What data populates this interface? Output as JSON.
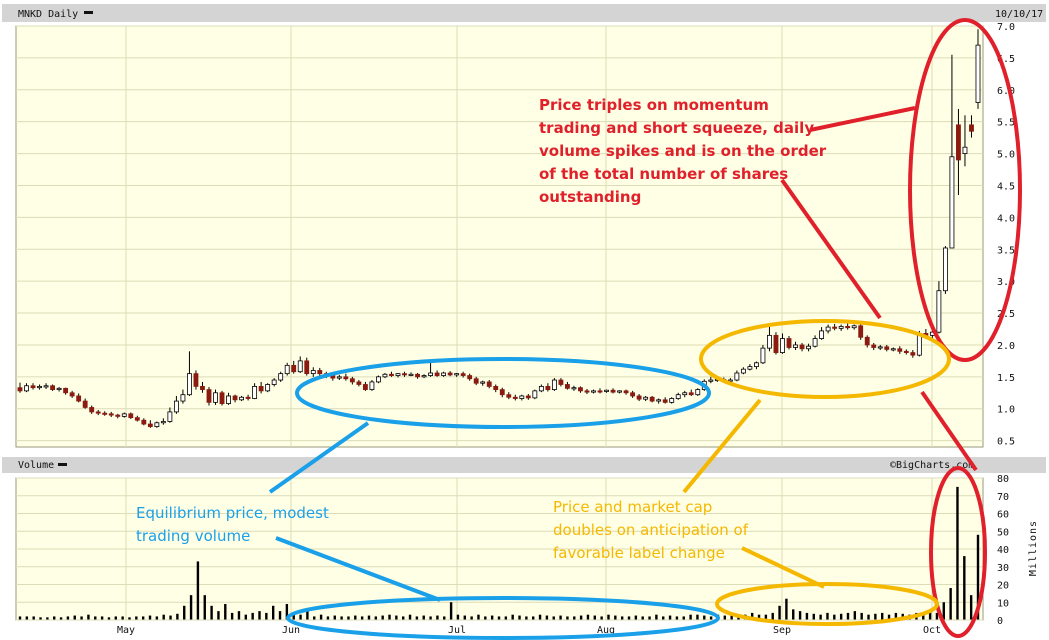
{
  "header": {
    "symbol_label": "MNKD Daily",
    "date": "10/10/17"
  },
  "volume_header": {
    "label": "Volume",
    "watermark": "©BigCharts.com",
    "unit": "Millions"
  },
  "colors": {
    "panel_bg": "#ffffe6",
    "header_bg": "#d4d4d4",
    "grid": "#dcdcb8",
    "up_fill": "#ffffff",
    "down_fill": "#8b1a10",
    "candle_stroke": "#000000",
    "red": "#e0202a",
    "blue": "#1aa0e8",
    "yellow": "#f5b800"
  },
  "annotations": [
    {
      "id": "momentum",
      "color": "red",
      "lines": [
        "Price triples on momentum",
        "trading and short squeeze, daily",
        "volume spikes and is on the order",
        "of the total number of shares",
        "outstanding"
      ]
    },
    {
      "id": "equilibrium",
      "color": "blue",
      "lines": [
        "Equilibrium price, modest",
        "trading volume"
      ]
    },
    {
      "id": "label-change",
      "color": "yellow",
      "lines": [
        "Price and market cap",
        "doubles on anticipation of",
        "favorable label change"
      ]
    }
  ],
  "chart_data": [
    {
      "type": "candlestick",
      "title": "MNKD Daily",
      "x_tick_labels": [
        "May",
        "Jun",
        "Jul",
        "Aug",
        "Sep",
        "Oct"
      ],
      "y_ticks": [
        0.5,
        1.0,
        1.5,
        2.0,
        2.5,
        3.0,
        3.5,
        4.0,
        4.5,
        5.0,
        5.5,
        6.0,
        6.5,
        7.0
      ],
      "ylim": [
        0.4,
        7.0
      ],
      "grid": true,
      "bars": [
        {
          "o": 1.33,
          "h": 1.41,
          "c": 1.28,
          "l": 1.25
        },
        {
          "o": 1.28,
          "h": 1.4,
          "c": 1.36,
          "l": 1.26
        },
        {
          "o": 1.36,
          "h": 1.4,
          "c": 1.33,
          "l": 1.3
        },
        {
          "o": 1.33,
          "h": 1.38,
          "c": 1.35,
          "l": 1.3
        },
        {
          "o": 1.35,
          "h": 1.4,
          "c": 1.36,
          "l": 1.31
        },
        {
          "o": 1.36,
          "h": 1.38,
          "c": 1.3,
          "l": 1.28
        },
        {
          "o": 1.3,
          "h": 1.34,
          "c": 1.32,
          "l": 1.27
        },
        {
          "o": 1.32,
          "h": 1.33,
          "c": 1.25,
          "l": 1.22
        },
        {
          "o": 1.25,
          "h": 1.28,
          "c": 1.2,
          "l": 1.17
        },
        {
          "o": 1.2,
          "h": 1.24,
          "c": 1.12,
          "l": 1.1
        },
        {
          "o": 1.12,
          "h": 1.16,
          "c": 1.02,
          "l": 1.0
        },
        {
          "o": 1.02,
          "h": 1.05,
          "c": 0.95,
          "l": 0.92
        },
        {
          "o": 0.95,
          "h": 0.98,
          "c": 0.93,
          "l": 0.9
        },
        {
          "o": 0.93,
          "h": 0.96,
          "c": 0.92,
          "l": 0.89
        },
        {
          "o": 0.92,
          "h": 0.95,
          "c": 0.9,
          "l": 0.87
        },
        {
          "o": 0.9,
          "h": 0.92,
          "c": 0.88,
          "l": 0.85
        },
        {
          "o": 0.88,
          "h": 0.94,
          "c": 0.92,
          "l": 0.86
        },
        {
          "o": 0.92,
          "h": 0.94,
          "c": 0.86,
          "l": 0.84
        },
        {
          "o": 0.86,
          "h": 0.89,
          "c": 0.82,
          "l": 0.8
        },
        {
          "o": 0.82,
          "h": 0.85,
          "c": 0.76,
          "l": 0.74
        },
        {
          "o": 0.76,
          "h": 0.82,
          "c": 0.72,
          "l": 0.7
        },
        {
          "o": 0.72,
          "h": 0.8,
          "c": 0.78,
          "l": 0.7
        },
        {
          "o": 0.78,
          "h": 0.85,
          "c": 0.8,
          "l": 0.75
        },
        {
          "o": 0.8,
          "h": 1.02,
          "c": 0.95,
          "l": 0.78
        },
        {
          "o": 0.95,
          "h": 1.2,
          "c": 1.12,
          "l": 0.92
        },
        {
          "o": 1.12,
          "h": 1.3,
          "c": 1.22,
          "l": 1.08
        },
        {
          "o": 1.22,
          "h": 1.9,
          "c": 1.55,
          "l": 1.2
        },
        {
          "o": 1.55,
          "h": 1.6,
          "c": 1.35,
          "l": 1.3
        },
        {
          "o": 1.35,
          "h": 1.42,
          "c": 1.3,
          "l": 1.25
        },
        {
          "o": 1.3,
          "h": 1.34,
          "c": 1.1,
          "l": 1.05
        },
        {
          "o": 1.1,
          "h": 1.3,
          "c": 1.25,
          "l": 1.06
        },
        {
          "o": 1.25,
          "h": 1.28,
          "c": 1.08,
          "l": 1.05
        },
        {
          "o": 1.08,
          "h": 1.25,
          "c": 1.2,
          "l": 1.06
        },
        {
          "o": 1.2,
          "h": 1.22,
          "c": 1.14,
          "l": 1.1
        },
        {
          "o": 1.14,
          "h": 1.2,
          "c": 1.18,
          "l": 1.12
        },
        {
          "o": 1.18,
          "h": 1.22,
          "c": 1.16,
          "l": 1.13
        },
        {
          "o": 1.16,
          "h": 1.4,
          "c": 1.35,
          "l": 1.15
        },
        {
          "o": 1.35,
          "h": 1.42,
          "c": 1.28,
          "l": 1.24
        },
        {
          "o": 1.28,
          "h": 1.4,
          "c": 1.38,
          "l": 1.26
        },
        {
          "o": 1.38,
          "h": 1.48,
          "c": 1.45,
          "l": 1.35
        },
        {
          "o": 1.45,
          "h": 1.58,
          "c": 1.55,
          "l": 1.42
        },
        {
          "o": 1.55,
          "h": 1.72,
          "c": 1.68,
          "l": 1.52
        },
        {
          "o": 1.68,
          "h": 1.75,
          "c": 1.58,
          "l": 1.55
        },
        {
          "o": 1.58,
          "h": 1.82,
          "c": 1.75,
          "l": 1.56
        },
        {
          "o": 1.75,
          "h": 1.8,
          "c": 1.55,
          "l": 1.52
        },
        {
          "o": 1.55,
          "h": 1.65,
          "c": 1.6,
          "l": 1.5
        },
        {
          "o": 1.6,
          "h": 1.64,
          "c": 1.55,
          "l": 1.52
        },
        {
          "o": 1.55,
          "h": 1.58,
          "c": 1.52,
          "l": 1.48
        },
        {
          "o": 1.52,
          "h": 1.56,
          "c": 1.48,
          "l": 1.44
        },
        {
          "o": 1.48,
          "h": 1.53,
          "c": 1.5,
          "l": 1.45
        },
        {
          "o": 1.5,
          "h": 1.55,
          "c": 1.47,
          "l": 1.44
        },
        {
          "o": 1.47,
          "h": 1.5,
          "c": 1.42,
          "l": 1.38
        },
        {
          "o": 1.42,
          "h": 1.45,
          "c": 1.38,
          "l": 1.35
        },
        {
          "o": 1.38,
          "h": 1.42,
          "c": 1.3,
          "l": 1.28
        },
        {
          "o": 1.3,
          "h": 1.45,
          "c": 1.42,
          "l": 1.28
        },
        {
          "o": 1.42,
          "h": 1.52,
          "c": 1.5,
          "l": 1.4
        },
        {
          "o": 1.5,
          "h": 1.56,
          "c": 1.54,
          "l": 1.48
        },
        {
          "o": 1.54,
          "h": 1.58,
          "c": 1.52,
          "l": 1.5
        },
        {
          "o": 1.52,
          "h": 1.56,
          "c": 1.55,
          "l": 1.49
        },
        {
          "o": 1.55,
          "h": 1.58,
          "c": 1.53,
          "l": 1.5
        },
        {
          "o": 1.53,
          "h": 1.57,
          "c": 1.54,
          "l": 1.51
        },
        {
          "o": 1.54,
          "h": 1.56,
          "c": 1.5,
          "l": 1.47
        },
        {
          "o": 1.5,
          "h": 1.54,
          "c": 1.52,
          "l": 1.48
        },
        {
          "o": 1.52,
          "h": 1.72,
          "c": 1.56,
          "l": 1.5
        },
        {
          "o": 1.56,
          "h": 1.6,
          "c": 1.52,
          "l": 1.5
        },
        {
          "o": 1.52,
          "h": 1.58,
          "c": 1.56,
          "l": 1.5
        },
        {
          "o": 1.56,
          "h": 1.59,
          "c": 1.53,
          "l": 1.51
        },
        {
          "o": 1.53,
          "h": 1.56,
          "c": 1.55,
          "l": 1.5
        },
        {
          "o": 1.55,
          "h": 1.58,
          "c": 1.52,
          "l": 1.49
        },
        {
          "o": 1.52,
          "h": 1.55,
          "c": 1.47,
          "l": 1.44
        },
        {
          "o": 1.47,
          "h": 1.5,
          "c": 1.4,
          "l": 1.37
        },
        {
          "o": 1.4,
          "h": 1.44,
          "c": 1.42,
          "l": 1.36
        },
        {
          "o": 1.42,
          "h": 1.45,
          "c": 1.35,
          "l": 1.32
        },
        {
          "o": 1.35,
          "h": 1.38,
          "c": 1.3,
          "l": 1.26
        },
        {
          "o": 1.3,
          "h": 1.33,
          "c": 1.22,
          "l": 1.18
        },
        {
          "o": 1.22,
          "h": 1.26,
          "c": 1.18,
          "l": 1.15
        },
        {
          "o": 1.18,
          "h": 1.22,
          "c": 1.16,
          "l": 1.13
        },
        {
          "o": 1.16,
          "h": 1.22,
          "c": 1.2,
          "l": 1.13
        },
        {
          "o": 1.2,
          "h": 1.23,
          "c": 1.17,
          "l": 1.14
        },
        {
          "o": 1.17,
          "h": 1.3,
          "c": 1.28,
          "l": 1.15
        },
        {
          "o": 1.28,
          "h": 1.38,
          "c": 1.35,
          "l": 1.26
        },
        {
          "o": 1.35,
          "h": 1.4,
          "c": 1.3,
          "l": 1.27
        },
        {
          "o": 1.3,
          "h": 1.48,
          "c": 1.45,
          "l": 1.28
        },
        {
          "o": 1.45,
          "h": 1.48,
          "c": 1.38,
          "l": 1.35
        },
        {
          "o": 1.38,
          "h": 1.42,
          "c": 1.32,
          "l": 1.3
        },
        {
          "o": 1.32,
          "h": 1.36,
          "c": 1.33,
          "l": 1.28
        },
        {
          "o": 1.33,
          "h": 1.35,
          "c": 1.28,
          "l": 1.25
        },
        {
          "o": 1.28,
          "h": 1.31,
          "c": 1.26,
          "l": 1.23
        },
        {
          "o": 1.26,
          "h": 1.3,
          "c": 1.28,
          "l": 1.24
        },
        {
          "o": 1.28,
          "h": 1.32,
          "c": 1.27,
          "l": 1.24
        },
        {
          "o": 1.27,
          "h": 1.3,
          "c": 1.29,
          "l": 1.25
        },
        {
          "o": 1.29,
          "h": 1.32,
          "c": 1.26,
          "l": 1.24
        },
        {
          "o": 1.26,
          "h": 1.29,
          "c": 1.28,
          "l": 1.24
        },
        {
          "o": 1.28,
          "h": 1.3,
          "c": 1.25,
          "l": 1.22
        },
        {
          "o": 1.25,
          "h": 1.28,
          "c": 1.2,
          "l": 1.17
        },
        {
          "o": 1.2,
          "h": 1.23,
          "c": 1.15,
          "l": 1.12
        },
        {
          "o": 1.15,
          "h": 1.2,
          "c": 1.18,
          "l": 1.12
        },
        {
          "o": 1.18,
          "h": 1.2,
          "c": 1.12,
          "l": 1.1
        },
        {
          "o": 1.12,
          "h": 1.16,
          "c": 1.14,
          "l": 1.08
        },
        {
          "o": 1.14,
          "h": 1.18,
          "c": 1.1,
          "l": 1.08
        },
        {
          "o": 1.1,
          "h": 1.18,
          "c": 1.16,
          "l": 1.08
        },
        {
          "o": 1.16,
          "h": 1.25,
          "c": 1.22,
          "l": 1.14
        },
        {
          "o": 1.22,
          "h": 1.28,
          "c": 1.25,
          "l": 1.18
        },
        {
          "o": 1.25,
          "h": 1.3,
          "c": 1.22,
          "l": 1.2
        },
        {
          "o": 1.22,
          "h": 1.32,
          "c": 1.3,
          "l": 1.2
        },
        {
          "o": 1.3,
          "h": 1.46,
          "c": 1.43,
          "l": 1.28
        },
        {
          "o": 1.43,
          "h": 1.5,
          "c": 1.45,
          "l": 1.4
        },
        {
          "o": 1.45,
          "h": 1.5,
          "c": 1.46,
          "l": 1.42
        },
        {
          "o": 1.46,
          "h": 1.49,
          "c": 1.44,
          "l": 1.42
        },
        {
          "o": 1.44,
          "h": 1.48,
          "c": 1.45,
          "l": 1.42
        },
        {
          "o": 1.45,
          "h": 1.6,
          "c": 1.56,
          "l": 1.43
        },
        {
          "o": 1.56,
          "h": 1.65,
          "c": 1.62,
          "l": 1.54
        },
        {
          "o": 1.62,
          "h": 1.7,
          "c": 1.66,
          "l": 1.6
        },
        {
          "o": 1.66,
          "h": 1.74,
          "c": 1.72,
          "l": 1.62
        },
        {
          "o": 1.72,
          "h": 2.0,
          "c": 1.95,
          "l": 1.7
        },
        {
          "o": 1.95,
          "h": 2.32,
          "c": 2.15,
          "l": 1.9
        },
        {
          "o": 2.15,
          "h": 2.2,
          "c": 1.88,
          "l": 1.85
        },
        {
          "o": 1.88,
          "h": 2.18,
          "c": 2.1,
          "l": 1.86
        },
        {
          "o": 2.1,
          "h": 2.14,
          "c": 1.96,
          "l": 1.93
        },
        {
          "o": 1.96,
          "h": 2.05,
          "c": 2.0,
          "l": 1.92
        },
        {
          "o": 2.0,
          "h": 2.03,
          "c": 1.94,
          "l": 1.9
        },
        {
          "o": 1.94,
          "h": 2.02,
          "c": 1.98,
          "l": 1.9
        },
        {
          "o": 1.98,
          "h": 2.15,
          "c": 2.1,
          "l": 1.96
        },
        {
          "o": 2.1,
          "h": 2.28,
          "c": 2.22,
          "l": 2.08
        },
        {
          "o": 2.22,
          "h": 2.32,
          "c": 2.28,
          "l": 2.18
        },
        {
          "o": 2.28,
          "h": 2.33,
          "c": 2.26,
          "l": 2.23
        },
        {
          "o": 2.26,
          "h": 2.32,
          "c": 2.29,
          "l": 2.22
        },
        {
          "o": 2.29,
          "h": 2.34,
          "c": 2.27,
          "l": 2.24
        },
        {
          "o": 2.27,
          "h": 2.32,
          "c": 2.3,
          "l": 2.24
        },
        {
          "o": 2.3,
          "h": 2.33,
          "c": 2.12,
          "l": 2.08
        },
        {
          "o": 2.12,
          "h": 2.15,
          "c": 2.0,
          "l": 1.96
        },
        {
          "o": 2.0,
          "h": 2.03,
          "c": 1.96,
          "l": 1.92
        },
        {
          "o": 1.96,
          "h": 2.0,
          "c": 1.97,
          "l": 1.92
        },
        {
          "o": 1.97,
          "h": 2.0,
          "c": 1.93,
          "l": 1.9
        },
        {
          "o": 1.93,
          "h": 1.96,
          "c": 1.94,
          "l": 1.9
        },
        {
          "o": 1.94,
          "h": 1.98,
          "c": 1.9,
          "l": 1.86
        },
        {
          "o": 1.9,
          "h": 1.93,
          "c": 1.88,
          "l": 1.85
        },
        {
          "o": 1.88,
          "h": 1.92,
          "c": 1.84,
          "l": 1.8
        },
        {
          "o": 1.84,
          "h": 2.22,
          "c": 2.18,
          "l": 1.82
        },
        {
          "o": 2.18,
          "h": 2.25,
          "c": 2.15,
          "l": 2.1
        },
        {
          "o": 2.15,
          "h": 2.3,
          "c": 2.2,
          "l": 2.1
        },
        {
          "o": 2.2,
          "h": 3.0,
          "c": 2.85,
          "l": 2.18
        },
        {
          "o": 2.85,
          "h": 3.55,
          "c": 3.52,
          "l": 2.8
        },
        {
          "o": 3.52,
          "h": 6.55,
          "c": 4.95,
          "l": 3.55
        },
        {
          "o": 5.45,
          "h": 5.7,
          "c": 4.9,
          "l": 4.35
        },
        {
          "o": 5.0,
          "h": 5.6,
          "c": 5.1,
          "l": 4.8
        },
        {
          "o": 5.45,
          "h": 5.6,
          "c": 5.35,
          "l": 5.25
        },
        {
          "o": 5.8,
          "h": 6.95,
          "c": 6.7,
          "l": 5.7
        }
      ]
    },
    {
      "type": "bar",
      "title": "Volume",
      "ylabel": "Millions",
      "x_tick_labels": [
        "May",
        "Jun",
        "Jul",
        "Aug",
        "Sep",
        "Oct"
      ],
      "y_ticks": [
        0,
        10,
        20,
        30,
        40,
        50,
        60,
        70,
        80
      ],
      "ylim": [
        0,
        80
      ],
      "values": [
        2,
        2,
        2,
        1.5,
        1.5,
        2,
        1.5,
        2,
        2.5,
        2,
        3,
        2,
        2,
        1.5,
        2,
        2,
        1.5,
        2,
        2,
        2.5,
        2,
        3,
        2.5,
        3.5,
        8,
        14,
        33,
        14,
        8,
        5,
        9,
        4,
        5,
        3,
        4,
        5,
        4,
        8,
        5,
        9,
        4,
        3,
        6,
        2,
        3,
        2,
        2.5,
        2,
        2,
        2.5,
        2,
        2.5,
        2,
        2.5,
        3,
        2.5,
        2,
        3,
        2,
        2.5,
        2,
        2.5,
        2,
        10,
        3,
        2.5,
        2,
        3,
        2,
        2.5,
        2,
        2,
        3,
        2.5,
        2,
        2,
        3,
        2.5,
        2,
        2.5,
        2,
        2,
        2.5,
        3,
        2.5,
        2,
        3,
        2.5,
        2,
        2,
        2.5,
        2,
        2,
        3,
        2,
        2.5,
        2,
        2,
        3,
        3,
        2.5,
        2,
        3,
        2.5,
        3,
        2.5,
        3,
        4,
        3,
        3,
        4,
        8,
        12,
        6,
        5,
        4,
        3.5,
        3,
        4,
        3,
        3.5,
        4,
        5,
        4,
        3,
        3.5,
        4,
        3,
        4,
        3.5,
        3,
        4,
        3,
        5,
        4,
        10,
        18,
        75,
        36,
        14,
        48
      ]
    }
  ]
}
